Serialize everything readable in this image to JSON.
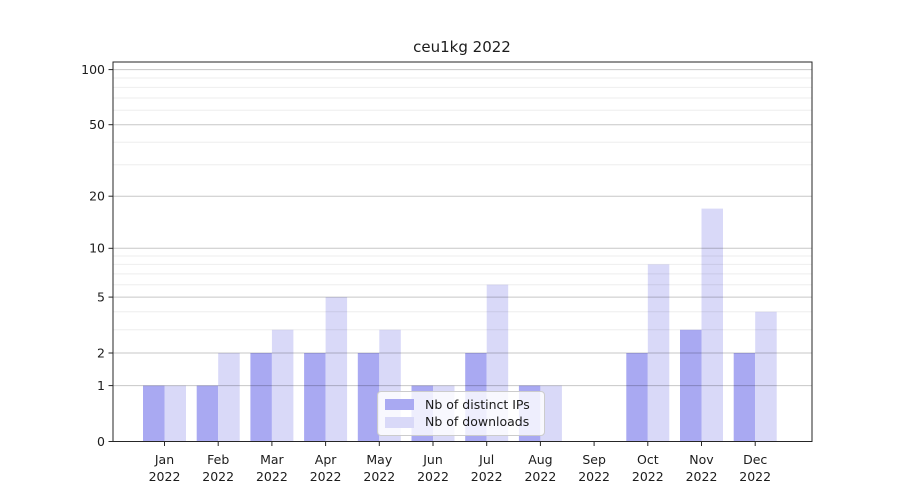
{
  "title": "ceu1kg 2022",
  "chart_data": {
    "type": "bar",
    "title": "ceu1kg 2022",
    "categories": [
      {
        "month": "Jan",
        "year": "2022"
      },
      {
        "month": "Feb",
        "year": "2022"
      },
      {
        "month": "Mar",
        "year": "2022"
      },
      {
        "month": "Apr",
        "year": "2022"
      },
      {
        "month": "May",
        "year": "2022"
      },
      {
        "month": "Jun",
        "year": "2022"
      },
      {
        "month": "Jul",
        "year": "2022"
      },
      {
        "month": "Aug",
        "year": "2022"
      },
      {
        "month": "Sep",
        "year": "2022"
      },
      {
        "month": "Oct",
        "year": "2022"
      },
      {
        "month": "Nov",
        "year": "2022"
      },
      {
        "month": "Dec",
        "year": "2022"
      }
    ],
    "series": [
      {
        "name": "Nb of distinct IPs",
        "color": "#a9a9f2",
        "values": [
          1,
          1,
          2,
          2,
          2,
          1,
          2,
          1,
          0,
          2,
          3,
          2
        ]
      },
      {
        "name": "Nb of downloads",
        "color": "#d9d9f8",
        "values": [
          1,
          2,
          3,
          5,
          3,
          1,
          6,
          1,
          0,
          8,
          17,
          4
        ]
      }
    ],
    "yscale": "log(1+x)",
    "ylim": [
      0,
      110
    ],
    "y_ticks": [
      0,
      1,
      2,
      5,
      10,
      20,
      50,
      100
    ],
    "y_minor_gridlines": [
      3,
      4,
      6,
      7,
      8,
      9,
      30,
      40,
      60,
      70,
      80,
      90
    ],
    "grid": "horizontal",
    "legend_position": "lower center"
  }
}
